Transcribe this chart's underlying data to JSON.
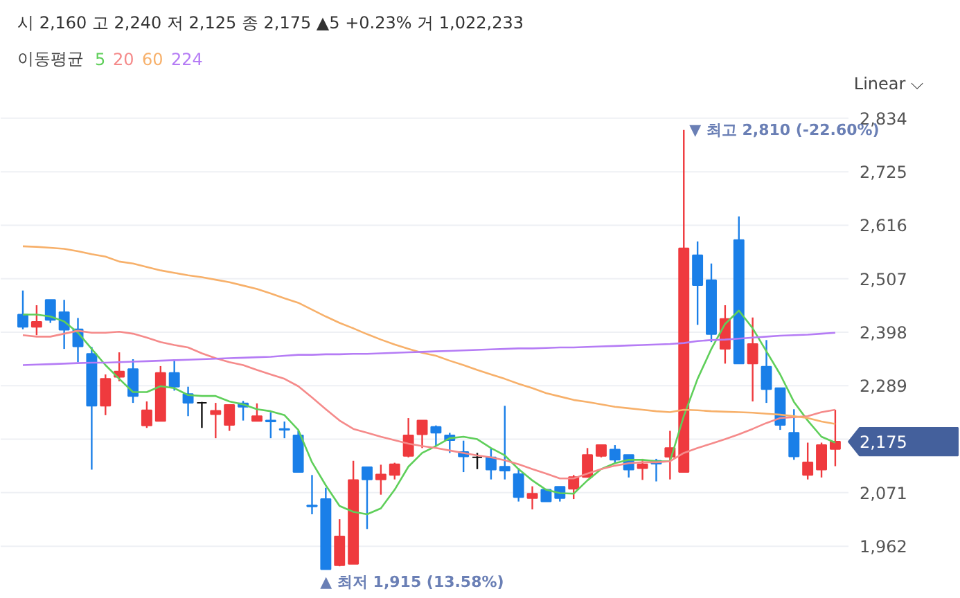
{
  "chart_data": {
    "type": "candlestick",
    "title": "시 2,160  고 2,240  저 2,125  종 2,175  ▲5 +0.23%  거 1,022,233",
    "legend_title": "이동평균",
    "categories": [
      null,
      null,
      null,
      null,
      null,
      null,
      null,
      null,
      null,
      null,
      null,
      null,
      null,
      null,
      null,
      null,
      null,
      null,
      null,
      null,
      null,
      null,
      null,
      null,
      null,
      null,
      null,
      null,
      null,
      null,
      null,
      null,
      null,
      null,
      null,
      null,
      null,
      null,
      null,
      null,
      null,
      null,
      null,
      null,
      null,
      null,
      null,
      null,
      null,
      null,
      null,
      null,
      null,
      null,
      null,
      null,
      null,
      null,
      null,
      null
    ],
    "ohlc": [
      [
        2434,
        2483,
        2404,
        2409
      ],
      [
        2409,
        2453,
        2392,
        2419
      ],
      [
        2464,
        2464,
        2417,
        2423
      ],
      [
        2439,
        2464,
        2364,
        2403
      ],
      [
        2404,
        2427,
        2337,
        2369
      ],
      [
        2354,
        2368,
        2118,
        2248
      ],
      [
        2248,
        2312,
        2229,
        2303
      ],
      [
        2307,
        2357,
        2298,
        2318
      ],
      [
        2323,
        2343,
        2254,
        2268
      ],
      [
        2208,
        2257,
        2203,
        2239
      ],
      [
        2217,
        2329,
        2217,
        2315
      ],
      [
        2315,
        2343,
        2279,
        2287
      ],
      [
        2272,
        2287,
        2227,
        2254
      ],
      [
        2254,
        2256,
        2203,
        2254
      ],
      [
        2231,
        2254,
        2182,
        2238
      ],
      [
        2209,
        2250,
        2197,
        2250
      ],
      [
        2253,
        2258,
        2218,
        2246
      ],
      [
        2217,
        2253,
        2217,
        2227
      ],
      [
        2218,
        2235,
        2182,
        2216
      ],
      [
        2201,
        2216,
        2182,
        2199
      ],
      [
        2188,
        2197,
        2113,
        2113
      ],
      [
        2045,
        2107,
        2027,
        2043
      ],
      [
        2058,
        2081,
        1915,
        1915
      ],
      [
        1923,
        2017,
        1921,
        1982
      ],
      [
        1926,
        2136,
        1926,
        2097
      ],
      [
        2123,
        2123,
        1997,
        2098
      ],
      [
        2098,
        2128,
        2067,
        2108
      ],
      [
        2107,
        2132,
        2098,
        2129
      ],
      [
        2146,
        2223,
        2143,
        2188
      ],
      [
        2190,
        2218,
        2162,
        2218
      ],
      [
        2205,
        2208,
        2166,
        2193
      ],
      [
        2188,
        2193,
        2152,
        2178
      ],
      [
        2154,
        2177,
        2113,
        2145
      ],
      [
        2143,
        2152,
        2119,
        2143
      ],
      [
        2143,
        2162,
        2098,
        2118
      ],
      [
        2124,
        2248,
        2098,
        2116
      ],
      [
        2109,
        2121,
        2053,
        2062
      ],
      [
        2060,
        2084,
        2037,
        2069
      ],
      [
        2077,
        2079,
        2053,
        2053
      ],
      [
        2083,
        2083,
        2053,
        2060
      ],
      [
        2079,
        2107,
        2058,
        2103
      ],
      [
        2103,
        2162,
        2103,
        2148
      ],
      [
        2146,
        2168,
        2143,
        2168
      ],
      [
        2159,
        2168,
        2131,
        2138
      ],
      [
        2148,
        2148,
        2102,
        2118
      ],
      [
        2121,
        2140,
        2097,
        2129
      ],
      [
        2136,
        2140,
        2094,
        2130
      ],
      [
        2144,
        2197,
        2098,
        2162
      ],
      [
        2113,
        2810,
        2113,
        2569
      ],
      [
        2555,
        2583,
        2413,
        2494
      ],
      [
        2504,
        2538,
        2378,
        2394
      ],
      [
        2364,
        2453,
        2334,
        2425
      ],
      [
        2586,
        2634,
        2334,
        2334
      ],
      [
        2334,
        2428,
        2257,
        2374
      ],
      [
        2328,
        2382,
        2254,
        2282
      ],
      [
        2284,
        2284,
        2199,
        2209
      ],
      [
        2193,
        2241,
        2138,
        2145
      ],
      [
        2107,
        2173,
        2098,
        2133
      ],
      [
        2118,
        2173,
        2102,
        2168
      ],
      [
        2160,
        2240,
        2125,
        2175
      ]
    ],
    "colors": [
      "#1a7fe8",
      "#ef3a3e",
      "#1a7fe8",
      "#1a7fe8",
      "#1a7fe8",
      "#1a7fe8",
      "#ef3a3e",
      "#ef3a3e",
      "#1a7fe8",
      "#ef3a3e",
      "#ef3a3e",
      "#1a7fe8",
      "#1a7fe8",
      "#111111",
      "#ef3a3e",
      "#ef3a3e",
      "#1a7fe8",
      "#ef3a3e",
      "#1a7fe8",
      "#1a7fe8",
      "#1a7fe8",
      "#1a7fe8",
      "#1a7fe8",
      "#ef3a3e",
      "#ef3a3e",
      "#1a7fe8",
      "#ef3a3e",
      "#ef3a3e",
      "#ef3a3e",
      "#ef3a3e",
      "#1a7fe8",
      "#1a7fe8",
      "#1a7fe8",
      "#111111",
      "#1a7fe8",
      "#1a7fe8",
      "#1a7fe8",
      "#ef3a3e",
      "#1a7fe8",
      "#1a7fe8",
      "#ef3a3e",
      "#ef3a3e",
      "#ef3a3e",
      "#1a7fe8",
      "#1a7fe8",
      "#ef3a3e",
      "#1a7fe8",
      "#ef3a3e",
      "#ef3a3e",
      "#1a7fe8",
      "#1a7fe8",
      "#ef3a3e",
      "#1a7fe8",
      "#ef3a3e",
      "#1a7fe8",
      "#1a7fe8",
      "#1a7fe8",
      "#ef3a3e",
      "#ef3a3e",
      "#ef3a3e"
    ],
    "series": [
      {
        "type": "line",
        "name": "5",
        "color": "#5fcf5a",
        "values": [
          2434,
          2434,
          2430,
          2420,
          2397,
          2364,
          2331,
          2303,
          2276,
          2276,
          2288,
          2284,
          2270,
          2268,
          2268,
          2257,
          2251,
          2241,
          2237,
          2229,
          2199,
          2133,
          2086,
          2044,
          2032,
          2027,
          2039,
          2077,
          2124,
          2152,
          2166,
          2182,
          2185,
          2180,
          2162,
          2147,
          2119,
          2096,
          2077,
          2070,
          2069,
          2096,
          2119,
          2131,
          2138,
          2138,
          2135,
          2135,
          2227,
          2303,
          2364,
          2415,
          2442,
          2406,
          2359,
          2312,
          2256,
          2218,
          2185,
          2173
        ]
      },
      {
        "type": "line",
        "name": "20",
        "color": "#f58a8a",
        "values": [
          2392,
          2389,
          2389,
          2395,
          2401,
          2397,
          2397,
          2399,
          2395,
          2387,
          2378,
          2372,
          2367,
          2355,
          2345,
          2337,
          2331,
          2321,
          2312,
          2303,
          2288,
          2265,
          2241,
          2218,
          2201,
          2193,
          2185,
          2178,
          2171,
          2166,
          2162,
          2157,
          2152,
          2147,
          2143,
          2137,
          2129,
          2119,
          2110,
          2100,
          2100,
          2110,
          2119,
          2126,
          2131,
          2133,
          2133,
          2135,
          2152,
          2162,
          2171,
          2180,
          2190,
          2201,
          2213,
          2223,
          2225,
          2227,
          2235,
          2240
        ]
      },
      {
        "type": "line",
        "name": "60",
        "color": "#f7b06a",
        "values": [
          2573,
          2572,
          2570,
          2568,
          2563,
          2557,
          2552,
          2542,
          2538,
          2531,
          2524,
          2519,
          2514,
          2510,
          2505,
          2500,
          2493,
          2486,
          2477,
          2467,
          2458,
          2444,
          2430,
          2417,
          2406,
          2394,
          2383,
          2373,
          2364,
          2356,
          2350,
          2340,
          2331,
          2321,
          2312,
          2303,
          2293,
          2284,
          2274,
          2267,
          2260,
          2256,
          2251,
          2246,
          2243,
          2240,
          2237,
          2235,
          2240,
          2239,
          2237,
          2236,
          2235,
          2234,
          2232,
          2230,
          2227,
          2223,
          2216,
          2211
        ]
      },
      {
        "type": "line",
        "name": "224",
        "color": "#b57cf5",
        "values": [
          2331,
          2332,
          2333,
          2334,
          2335,
          2336,
          2336,
          2337,
          2338,
          2339,
          2340,
          2341,
          2342,
          2343,
          2344,
          2345,
          2346,
          2347,
          2348,
          2350,
          2352,
          2352,
          2353,
          2353,
          2354,
          2354,
          2355,
          2356,
          2357,
          2358,
          2359,
          2360,
          2361,
          2362,
          2363,
          2364,
          2365,
          2365,
          2366,
          2367,
          2367,
          2368,
          2369,
          2370,
          2371,
          2372,
          2373,
          2374,
          2376,
          2380,
          2382,
          2383,
          2385,
          2387,
          2389,
          2391,
          2392,
          2393,
          2395,
          2397
        ]
      }
    ],
    "ylim": [
      1855,
      2862
    ],
    "yticks": [
      {
        "value": 1962,
        "label": "1,962"
      },
      {
        "value": 2071,
        "label": "2,071"
      },
      {
        "value": 2180,
        "label": null
      },
      {
        "value": 2289,
        "label": "2,289"
      },
      {
        "value": 2398,
        "label": "2,398"
      },
      {
        "value": 2507,
        "label": "2,507"
      },
      {
        "value": 2616,
        "label": "2,616"
      },
      {
        "value": 2725,
        "label": "2,725"
      },
      {
        "value": 2834,
        "label": "2,834"
      }
    ],
    "tick_labels": "y",
    "grid": "y",
    "annotations": [
      "▼ 최고 2,810 (-22.60%)",
      "▲ 최저 1,915 (13.58%)",
      "2,175",
      "Linear ⌵"
    ]
  }
}
